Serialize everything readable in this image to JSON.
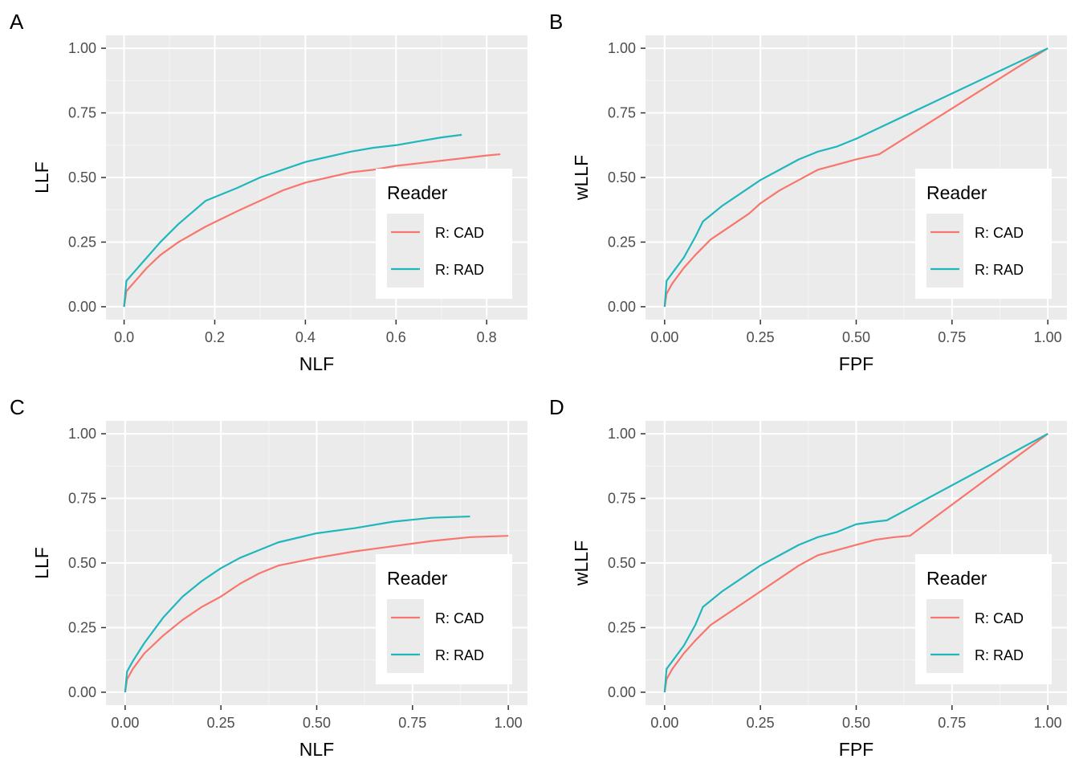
{
  "legend": {
    "title": "Reader"
  },
  "colors": {
    "R: CAD": "#F8766D",
    "R: RAD": "#1FB7BC"
  },
  "chart_data": [
    {
      "panel": "A",
      "type": "line",
      "xlabel": "NLF",
      "ylabel": "LLF",
      "xlim": [
        -0.04,
        0.89
      ],
      "ylim": [
        -0.05,
        1.05
      ],
      "xticks": [
        0,
        0.2,
        0.4,
        0.6,
        0.8
      ],
      "xtick_labels": [
        "0.0",
        "0.2",
        "0.4",
        "0.6",
        "0.8"
      ],
      "yticks": [
        0,
        0.25,
        0.5,
        0.75,
        1
      ],
      "ytick_labels": [
        "0.00",
        "0.25",
        "0.50",
        "0.75",
        "1.00"
      ],
      "grid": true,
      "legend_position": "right-inside",
      "series": [
        {
          "name": "R: CAD",
          "x": [
            0,
            0.005,
            0.02,
            0.05,
            0.08,
            0.12,
            0.18,
            0.25,
            0.3,
            0.35,
            0.4,
            0.45,
            0.5,
            0.55,
            0.6,
            0.65,
            0.7,
            0.75,
            0.8,
            0.83
          ],
          "y": [
            0,
            0.06,
            0.09,
            0.15,
            0.2,
            0.25,
            0.31,
            0.37,
            0.41,
            0.45,
            0.48,
            0.5,
            0.52,
            0.53,
            0.545,
            0.555,
            0.565,
            0.575,
            0.585,
            0.59
          ]
        },
        {
          "name": "R: RAD",
          "x": [
            0,
            0.005,
            0.02,
            0.05,
            0.08,
            0.12,
            0.18,
            0.25,
            0.3,
            0.35,
            0.4,
            0.45,
            0.5,
            0.55,
            0.6,
            0.65,
            0.7,
            0.745
          ],
          "y": [
            0,
            0.1,
            0.13,
            0.19,
            0.25,
            0.32,
            0.41,
            0.46,
            0.5,
            0.53,
            0.56,
            0.58,
            0.6,
            0.615,
            0.625,
            0.64,
            0.655,
            0.665
          ]
        }
      ]
    },
    {
      "panel": "B",
      "type": "line",
      "xlabel": "FPF",
      "ylabel": "wLLF",
      "xlim": [
        -0.05,
        1.05
      ],
      "ylim": [
        -0.05,
        1.05
      ],
      "xticks": [
        0,
        0.25,
        0.5,
        0.75,
        1
      ],
      "xtick_labels": [
        "0.00",
        "0.25",
        "0.50",
        "0.75",
        "1.00"
      ],
      "yticks": [
        0,
        0.25,
        0.5,
        0.75,
        1
      ],
      "ytick_labels": [
        "0.00",
        "0.25",
        "0.50",
        "0.75",
        "1.00"
      ],
      "grid": true,
      "legend_position": "right-inside",
      "series": [
        {
          "name": "R: CAD",
          "x": [
            0,
            0.005,
            0.02,
            0.05,
            0.08,
            0.12,
            0.18,
            0.22,
            0.25,
            0.3,
            0.35,
            0.4,
            0.45,
            0.5,
            0.56,
            1.0
          ],
          "y": [
            0,
            0.05,
            0.09,
            0.15,
            0.2,
            0.26,
            0.32,
            0.36,
            0.4,
            0.45,
            0.49,
            0.53,
            0.55,
            0.57,
            0.59,
            1.0
          ]
        },
        {
          "name": "R: RAD",
          "x": [
            0,
            0.005,
            0.02,
            0.05,
            0.08,
            0.1,
            0.15,
            0.2,
            0.25,
            0.3,
            0.35,
            0.4,
            0.45,
            0.5,
            1.0
          ],
          "y": [
            0,
            0.1,
            0.13,
            0.19,
            0.27,
            0.33,
            0.39,
            0.44,
            0.49,
            0.53,
            0.57,
            0.6,
            0.62,
            0.65,
            1.0
          ]
        }
      ]
    },
    {
      "panel": "C",
      "type": "line",
      "xlabel": "NLF",
      "ylabel": "LLF",
      "xlim": [
        -0.05,
        1.05
      ],
      "ylim": [
        -0.05,
        1.05
      ],
      "xticks": [
        0,
        0.25,
        0.5,
        0.75,
        1
      ],
      "xtick_labels": [
        "0.00",
        "0.25",
        "0.50",
        "0.75",
        "1.00"
      ],
      "yticks": [
        0,
        0.25,
        0.5,
        0.75,
        1
      ],
      "ytick_labels": [
        "0.00",
        "0.25",
        "0.50",
        "0.75",
        "1.00"
      ],
      "grid": true,
      "legend_position": "right-inside",
      "series": [
        {
          "name": "R: CAD",
          "x": [
            0,
            0.005,
            0.02,
            0.05,
            0.1,
            0.15,
            0.2,
            0.25,
            0.3,
            0.35,
            0.4,
            0.5,
            0.6,
            0.7,
            0.8,
            0.9,
            1.0
          ],
          "y": [
            0,
            0.05,
            0.09,
            0.15,
            0.22,
            0.28,
            0.33,
            0.37,
            0.42,
            0.46,
            0.49,
            0.52,
            0.545,
            0.565,
            0.585,
            0.6,
            0.605
          ]
        },
        {
          "name": "R: RAD",
          "x": [
            0,
            0.005,
            0.02,
            0.05,
            0.1,
            0.15,
            0.2,
            0.25,
            0.3,
            0.35,
            0.4,
            0.5,
            0.6,
            0.7,
            0.8,
            0.9
          ],
          "y": [
            0,
            0.08,
            0.12,
            0.19,
            0.29,
            0.37,
            0.43,
            0.48,
            0.52,
            0.55,
            0.58,
            0.615,
            0.635,
            0.66,
            0.675,
            0.68
          ]
        }
      ]
    },
    {
      "panel": "D",
      "type": "line",
      "xlabel": "FPF",
      "ylabel": "wLLF",
      "xlim": [
        -0.05,
        1.05
      ],
      "ylim": [
        -0.05,
        1.05
      ],
      "xticks": [
        0,
        0.25,
        0.5,
        0.75,
        1
      ],
      "xtick_labels": [
        "0.00",
        "0.25",
        "0.50",
        "0.75",
        "1.00"
      ],
      "yticks": [
        0,
        0.25,
        0.5,
        0.75,
        1
      ],
      "ytick_labels": [
        "0.00",
        "0.25",
        "0.50",
        "0.75",
        "1.00"
      ],
      "grid": true,
      "legend_position": "right-inside",
      "series": [
        {
          "name": "R: CAD",
          "x": [
            0,
            0.005,
            0.02,
            0.05,
            0.08,
            0.12,
            0.18,
            0.22,
            0.25,
            0.3,
            0.35,
            0.4,
            0.45,
            0.5,
            0.55,
            0.6,
            0.64,
            1.0
          ],
          "y": [
            0,
            0.05,
            0.09,
            0.15,
            0.2,
            0.26,
            0.32,
            0.36,
            0.39,
            0.44,
            0.49,
            0.53,
            0.55,
            0.57,
            0.59,
            0.6,
            0.605,
            1.0
          ]
        },
        {
          "name": "R: RAD",
          "x": [
            0,
            0.005,
            0.02,
            0.05,
            0.08,
            0.1,
            0.15,
            0.2,
            0.25,
            0.3,
            0.35,
            0.4,
            0.45,
            0.5,
            0.55,
            0.58,
            1.0
          ],
          "y": [
            0,
            0.09,
            0.12,
            0.18,
            0.26,
            0.33,
            0.39,
            0.44,
            0.49,
            0.53,
            0.57,
            0.6,
            0.62,
            0.65,
            0.66,
            0.665,
            1.0
          ]
        }
      ]
    }
  ]
}
